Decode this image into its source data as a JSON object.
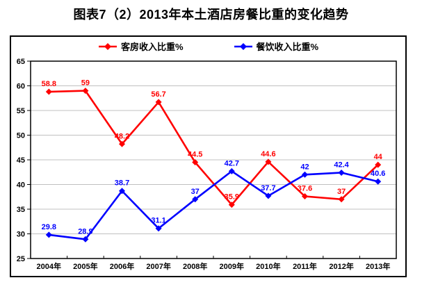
{
  "title": "图表7（2）2013年本土酒店房餐比重的变化趋势",
  "colors": {
    "room_series": "#FF0000",
    "food_series": "#0000FF",
    "gridline": "#C0C0C0",
    "axis": "#000000",
    "background": "#FFFFFF"
  },
  "legend": {
    "items": [
      {
        "label": "客房收入比重%",
        "marker": "diamond-line-icon",
        "color": "#FF0000"
      },
      {
        "label": "餐饮收入比重%",
        "marker": "diamond-line-icon",
        "color": "#0000FF"
      }
    ]
  },
  "chart_data": {
    "type": "line",
    "title": "图表7（2）2013年本土酒店房餐比重的变化趋势",
    "categories": [
      "2004年",
      "2005年",
      "2006年",
      "2007年",
      "2008年",
      "2009年",
      "2010年",
      "2011年",
      "2012年",
      "2013年"
    ],
    "series": [
      {
        "name": "客房收入比重%",
        "color": "#FF0000",
        "values": [
          58.8,
          59,
          48.2,
          56.7,
          44.5,
          35.9,
          44.6,
          37.6,
          37,
          44
        ]
      },
      {
        "name": "餐饮收入比重%",
        "color": "#0000FF",
        "values": [
          29.8,
          28.9,
          38.7,
          31.1,
          37,
          42.7,
          37.7,
          42,
          42.4,
          40.6
        ]
      }
    ],
    "xlabel": "",
    "ylabel": "",
    "ylim": [
      25,
      65
    ],
    "ytick_step": 5,
    "yticks": [
      25,
      30,
      35,
      40,
      45,
      50,
      55,
      60,
      65
    ],
    "grid": true,
    "legend_position": "top",
    "data_labels": true
  }
}
